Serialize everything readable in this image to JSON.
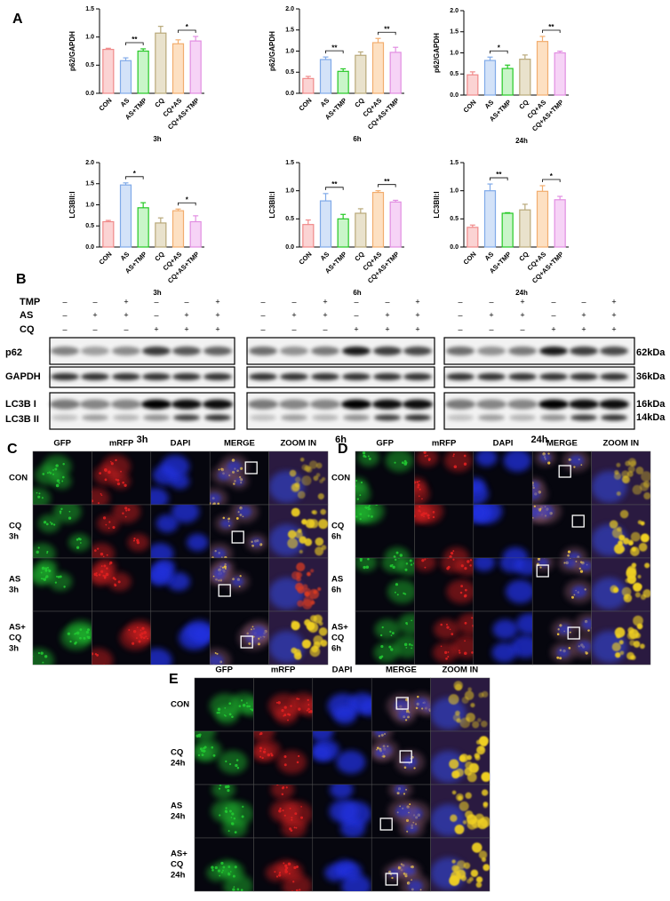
{
  "panel_labels": [
    "A",
    "B",
    "C",
    "D",
    "E"
  ],
  "chart_data": [
    {
      "type": "bar",
      "ylabel": "p62/GAPDH",
      "xlabel": "3h",
      "categories": [
        "CON",
        "AS",
        "AS+TMP",
        "CQ",
        "CQ+AS",
        "CQ+AS+TMP"
      ],
      "values": [
        0.78,
        0.58,
        0.75,
        1.07,
        0.88,
        0.93
      ],
      "errors": [
        0.02,
        0.05,
        0.04,
        0.12,
        0.07,
        0.08
      ],
      "colors": [
        "#fbd3d3",
        "#d3e2f8",
        "#c9f5c9",
        "#e9e2cc",
        "#fde0c2",
        "#f6d3f6"
      ],
      "edge_colors": [
        "#f08a8a",
        "#80aae8",
        "#25c925",
        "#b9a97a",
        "#f2ad6e",
        "#e28ee2"
      ],
      "ylim": [
        0,
        1.5
      ],
      "yticks": [
        {
          "value": 0,
          "label": "0.0"
        },
        0.5,
        {
          "value": 1,
          "label": "1.0"
        },
        1.5
      ],
      "significance": [
        "**",
        "*"
      ]
    },
    {
      "type": "bar",
      "ylabel": "p62/GAPDH",
      "xlabel": "6h",
      "categories": [
        "CON",
        "AS",
        "AS+TMP",
        "CQ",
        "CQ+AS",
        "CQ+AS+TMP"
      ],
      "values": [
        0.35,
        0.8,
        0.52,
        0.9,
        1.2,
        0.97
      ],
      "errors": [
        0.05,
        0.06,
        0.06,
        0.08,
        0.1,
        0.12
      ],
      "colors": [
        "#fbd3d3",
        "#d3e2f8",
        "#c9f5c9",
        "#e9e2cc",
        "#fde0c2",
        "#f6d3f6"
      ],
      "edge_colors": [
        "#f08a8a",
        "#80aae8",
        "#25c925",
        "#b9a97a",
        "#f2ad6e",
        "#e28ee2"
      ],
      "ylim": [
        0,
        2
      ],
      "yticks": [
        {
          "value": 0,
          "label": "0.0"
        },
        0.5,
        {
          "value": 1,
          "label": "1.0"
        },
        1.5,
        {
          "value": 2,
          "label": "2.0"
        }
      ],
      "significance": [
        "**",
        "**"
      ]
    },
    {
      "type": "bar",
      "ylabel": "p62/GAPDH",
      "xlabel": "24h",
      "categories": [
        "CON",
        "AS",
        "AS+TMP",
        "CQ",
        "CQ+AS",
        "CQ+AS+TMP"
      ],
      "values": [
        0.48,
        0.82,
        0.63,
        0.85,
        1.27,
        1.0
      ],
      "errors": [
        0.07,
        0.08,
        0.08,
        0.1,
        0.12,
        0.04
      ],
      "colors": [
        "#fbd3d3",
        "#d3e2f8",
        "#c9f5c9",
        "#e9e2cc",
        "#fde0c2",
        "#f6d3f6"
      ],
      "edge_colors": [
        "#f08a8a",
        "#80aae8",
        "#25c925",
        "#b9a97a",
        "#f2ad6e",
        "#e28ee2"
      ],
      "ylim": [
        0,
        2
      ],
      "yticks": [
        {
          "value": 0,
          "label": "0.0"
        },
        0.5,
        {
          "value": 1,
          "label": "1.0"
        },
        1.5,
        {
          "value": 2,
          "label": "2.0"
        }
      ],
      "significance": [
        "*",
        "**"
      ]
    },
    {
      "type": "bar",
      "ylabel": "LC3BII:I",
      "xlabel": "3h",
      "categories": [
        "CON",
        "AS",
        "AS+TMP",
        "CQ",
        "CQ+AS",
        "CQ+AS+TMP"
      ],
      "values": [
        0.6,
        1.47,
        0.93,
        0.57,
        0.86,
        0.6
      ],
      "errors": [
        0.03,
        0.05,
        0.12,
        0.12,
        0.04,
        0.14
      ],
      "colors": [
        "#fbd3d3",
        "#d3e2f8",
        "#c9f5c9",
        "#e9e2cc",
        "#fde0c2",
        "#f6d3f6"
      ],
      "edge_colors": [
        "#f08a8a",
        "#80aae8",
        "#25c925",
        "#b9a97a",
        "#f2ad6e",
        "#e28ee2"
      ],
      "ylim": [
        0,
        2
      ],
      "yticks": [
        {
          "value": 0,
          "label": "0.0"
        },
        0.5,
        {
          "value": 1,
          "label": "1.0"
        },
        1.5,
        {
          "value": 2,
          "label": "2.0"
        }
      ],
      "significance": [
        "*",
        "*"
      ]
    },
    {
      "type": "bar",
      "ylabel": "LC3BII:I",
      "xlabel": "6h",
      "categories": [
        "CON",
        "AS",
        "AS+TMP",
        "CQ",
        "CQ+AS",
        "CQ+AS+TMP"
      ],
      "values": [
        0.4,
        0.82,
        0.5,
        0.6,
        0.97,
        0.8
      ],
      "errors": [
        0.08,
        0.13,
        0.08,
        0.08,
        0.03,
        0.03
      ],
      "colors": [
        "#fbd3d3",
        "#d3e2f8",
        "#c9f5c9",
        "#e9e2cc",
        "#fde0c2",
        "#f6d3f6"
      ],
      "edge_colors": [
        "#f08a8a",
        "#80aae8",
        "#25c925",
        "#b9a97a",
        "#f2ad6e",
        "#e28ee2"
      ],
      "ylim": [
        0,
        1.5
      ],
      "yticks": [
        {
          "value": 0,
          "label": "0.0"
        },
        0.5,
        {
          "value": 1,
          "label": "1.0"
        },
        1.5
      ],
      "significance": [
        "**",
        "**"
      ]
    },
    {
      "type": "bar",
      "ylabel": "LC3BII:I",
      "xlabel": "24h",
      "categories": [
        "CON",
        "AS",
        "AS+TMP",
        "CQ",
        "CQ+AS",
        "CQ+AS+TMP"
      ],
      "values": [
        0.35,
        1.0,
        0.6,
        0.66,
        0.99,
        0.84
      ],
      "errors": [
        0.04,
        0.12,
        0.01,
        0.1,
        0.1,
        0.06
      ],
      "colors": [
        "#fbd3d3",
        "#d3e2f8",
        "#c9f5c9",
        "#e9e2cc",
        "#fde0c2",
        "#f6d3f6"
      ],
      "edge_colors": [
        "#f08a8a",
        "#80aae8",
        "#25c925",
        "#b9a97a",
        "#f2ad6e",
        "#e28ee2"
      ],
      "ylim": [
        0,
        1.5
      ],
      "yticks": [
        {
          "value": 0,
          "label": "0.0"
        },
        0.5,
        {
          "value": 1,
          "label": "1.0"
        },
        1.5
      ],
      "significance": [
        "**",
        "*"
      ]
    }
  ],
  "blot": {
    "treatments": [
      {
        "name": "TMP",
        "signs": [
          "–",
          "–",
          "+",
          "–",
          "–",
          "+"
        ]
      },
      {
        "name": "AS",
        "signs": [
          "–",
          "+",
          "+",
          "–",
          "+",
          "+"
        ]
      },
      {
        "name": "CQ",
        "signs": [
          "–",
          "–",
          "–",
          "+",
          "+",
          "+"
        ]
      }
    ],
    "groups": [
      "3h",
      "6h",
      "24h"
    ],
    "proteins": [
      "p62",
      "GAPDH",
      "LC3B I",
      "LC3B II"
    ],
    "sizes": [
      "62kDa",
      "36kDa",
      "16kDa",
      "14kDa"
    ]
  },
  "microscopy": [
    {
      "columns": [
        "GFP",
        "mRFP",
        "DAPI",
        "MERGE",
        "ZOOM IN"
      ],
      "rows": [
        [
          "CON"
        ],
        [
          "CQ",
          "3h"
        ],
        [
          "AS",
          "3h"
        ],
        [
          "AS+",
          "CQ",
          "3h"
        ]
      ]
    },
    {
      "columns": [
        "GFP",
        "mRFP",
        "DAPI",
        "MERGE",
        "ZOOM IN"
      ],
      "rows": [
        [
          "CON"
        ],
        [
          "CQ",
          "6h"
        ],
        [
          "AS",
          "6h"
        ],
        [
          "AS+",
          "CQ",
          "6h"
        ]
      ]
    },
    {
      "columns": [
        "GFP",
        "mRFP",
        "DAPI",
        "MERGE",
        "ZOOM IN"
      ],
      "rows": [
        [
          "CON"
        ],
        [
          "CQ",
          "24h"
        ],
        [
          "AS",
          "24h"
        ],
        [
          "AS+",
          "CQ",
          "24h"
        ]
      ]
    }
  ]
}
